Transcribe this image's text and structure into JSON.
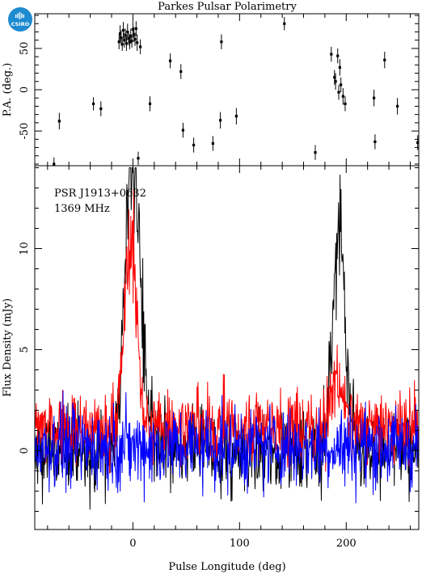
{
  "logo": {
    "text": "CSIRO"
  },
  "figure": {
    "title": "Parkes Pulsar Polarimetry",
    "annotation_lines": [
      "PSR J1913+0632",
      "1369 MHz"
    ]
  },
  "colors": {
    "total_intensity": "#000000",
    "linear": "#ff0000",
    "circular": "#0000ff",
    "axes": "#000000"
  },
  "chart_data": [
    {
      "type": "scatter",
      "panel": "top",
      "ylabel": "P.A. (deg.)",
      "xlim": [
        -92,
        268
      ],
      "ylim": [
        -92,
        92
      ],
      "yticks": [
        -50,
        0,
        50
      ],
      "xticks": [
        0,
        100,
        200
      ],
      "tick_labels_x_shown": false,
      "points": [
        {
          "x": -74,
          "y": -90,
          "err": 8
        },
        {
          "x": -69,
          "y": -38,
          "err": 10
        },
        {
          "x": -37,
          "y": -17,
          "err": 8
        },
        {
          "x": -30,
          "y": -23,
          "err": 9
        },
        {
          "x": -13,
          "y": 58,
          "err": 9
        },
        {
          "x": -12,
          "y": 68,
          "err": 10
        },
        {
          "x": -11,
          "y": 63,
          "err": 9
        },
        {
          "x": -10,
          "y": 55,
          "err": 8
        },
        {
          "x": -9,
          "y": 72,
          "err": 10
        },
        {
          "x": -8,
          "y": 60,
          "err": 9
        },
        {
          "x": -7,
          "y": 66,
          "err": 8
        },
        {
          "x": -6,
          "y": 56,
          "err": 9
        },
        {
          "x": -5,
          "y": 70,
          "err": 10
        },
        {
          "x": -4,
          "y": 62,
          "err": 8
        },
        {
          "x": -3,
          "y": 58,
          "err": 9
        },
        {
          "x": -2,
          "y": 65,
          "err": 9
        },
        {
          "x": -1,
          "y": 59,
          "err": 8
        },
        {
          "x": 0,
          "y": 73,
          "err": 10
        },
        {
          "x": 1,
          "y": 67,
          "err": 9
        },
        {
          "x": 2,
          "y": 61,
          "err": 8
        },
        {
          "x": 3,
          "y": 74,
          "err": 9
        },
        {
          "x": 4,
          "y": 57,
          "err": 10
        },
        {
          "x": 5,
          "y": -83,
          "err": 8
        },
        {
          "x": 7,
          "y": 52,
          "err": 9
        },
        {
          "x": 16,
          "y": -17,
          "err": 9
        },
        {
          "x": 35,
          "y": 35,
          "err": 9
        },
        {
          "x": 45,
          "y": 22,
          "err": 9
        },
        {
          "x": 47,
          "y": -49,
          "err": 9
        },
        {
          "x": 57,
          "y": -67,
          "err": 9
        },
        {
          "x": 75,
          "y": -65,
          "err": 9
        },
        {
          "x": 82,
          "y": -37,
          "err": 10
        },
        {
          "x": 83,
          "y": 58,
          "err": 9
        },
        {
          "x": 97,
          "y": -32,
          "err": 10
        },
        {
          "x": 142,
          "y": 80,
          "err": 8
        },
        {
          "x": 171,
          "y": -76,
          "err": 9
        },
        {
          "x": 186,
          "y": 43,
          "err": 9
        },
        {
          "x": 189,
          "y": 15,
          "err": 9
        },
        {
          "x": 190,
          "y": 10,
          "err": 10
        },
        {
          "x": 192,
          "y": 41,
          "err": 9
        },
        {
          "x": 193,
          "y": -3,
          "err": 9
        },
        {
          "x": 194,
          "y": 27,
          "err": 10
        },
        {
          "x": 195,
          "y": 6,
          "err": 9
        },
        {
          "x": 197,
          "y": -8,
          "err": 10
        },
        {
          "x": 199,
          "y": -17,
          "err": 9
        },
        {
          "x": 226,
          "y": -10,
          "err": 10
        },
        {
          "x": 227,
          "y": -63,
          "err": 9
        },
        {
          "x": 236,
          "y": 36,
          "err": 10
        },
        {
          "x": 248,
          "y": -20,
          "err": 10
        },
        {
          "x": 267,
          "y": -64,
          "err": 9
        }
      ]
    },
    {
      "type": "line",
      "panel": "bottom",
      "xlabel": "Pulse Longitude (deg)",
      "ylabel": "Flux Density (mJy)",
      "xlim": [
        -92,
        268
      ],
      "ylim": [
        -3.9,
        14.1
      ],
      "xticks": [
        0,
        100,
        200
      ],
      "yticks": [
        0,
        5,
        10
      ],
      "noise_levels": {
        "total_intensity": 1.45,
        "linear": 1.3,
        "circular": 1.45
      },
      "baseline_offsets": {
        "total_intensity": 0,
        "linear": 1.2,
        "circular": 0.2
      },
      "series": [
        {
          "color": "#000000",
          "components": [
            {
              "center": 0,
              "peak": 12.0,
              "width": 5.5
            },
            {
              "center": -7,
              "peak": 4.0,
              "width": 5
            },
            {
              "center": 8,
              "peak": 3.5,
              "width": 6
            },
            {
              "center": 193,
              "peak": 8.6,
              "width": 4.5
            },
            {
              "center": 200,
              "peak": 3.0,
              "width": 6
            },
            {
              "center": 186,
              "peak": 2.0,
              "width": 5
            }
          ]
        },
        {
          "color": "#ff0000",
          "components": [
            {
              "center": -1,
              "peak": 8.0,
              "width": 5
            },
            {
              "center": -7,
              "peak": 2.5,
              "width": 5
            },
            {
              "center": 192,
              "peak": 2.5,
              "width": 6
            }
          ]
        },
        {
          "color": "#0000ff",
          "components": []
        }
      ]
    }
  ]
}
